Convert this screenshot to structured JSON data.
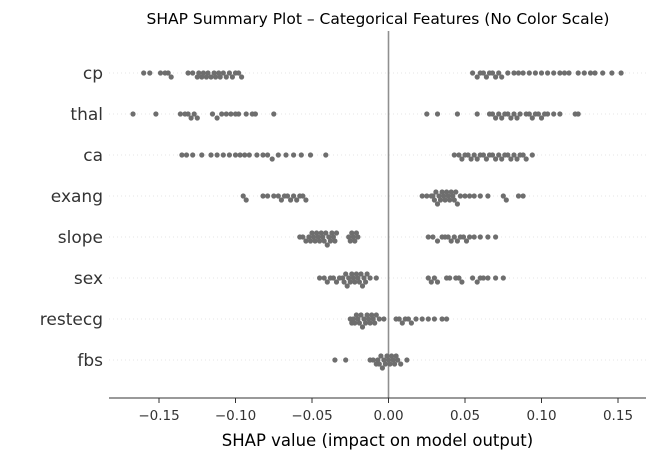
{
  "chart_data": {
    "type": "scatter",
    "title": "SHAP Summary Plot – Categorical Features (No Color Scale)",
    "xlabel": "SHAP value (impact on model output)",
    "ylabel": "",
    "xlim": [
      -0.185,
      0.17
    ],
    "xticks": [
      -0.15,
      -0.1,
      -0.05,
      0.0,
      0.05,
      0.1,
      0.15
    ],
    "xtick_labels": [
      "−0.15",
      "−0.10",
      "−0.05",
      "0.00",
      "0.05",
      "0.10",
      "0.15"
    ],
    "zero_line": 0.0,
    "grid": false,
    "point_color": "#6e6e6e",
    "zero_line_color": "#8f8f8f",
    "row_line_color": "#e6e6e6",
    "features": [
      {
        "name": "cp",
        "values": [
          -0.16,
          -0.156,
          -0.149,
          -0.146,
          -0.144,
          -0.142,
          -0.131,
          -0.128,
          -0.125,
          -0.124,
          -0.122,
          -0.121,
          -0.119,
          -0.118,
          -0.116,
          -0.114,
          -0.113,
          -0.111,
          -0.11,
          -0.108,
          -0.106,
          -0.104,
          -0.102,
          -0.1,
          -0.098,
          -0.096,
          0.055,
          0.058,
          0.06,
          0.062,
          0.064,
          0.066,
          0.068,
          0.07,
          0.072,
          0.074,
          0.078,
          0.082,
          0.085,
          0.088,
          0.092,
          0.096,
          0.1,
          0.104,
          0.108,
          0.112,
          0.115,
          0.118,
          0.124,
          0.128,
          0.132,
          0.135,
          0.14,
          0.146,
          0.152
        ]
      },
      {
        "name": "thal",
        "values": [
          -0.167,
          -0.152,
          -0.136,
          -0.133,
          -0.131,
          -0.129,
          -0.127,
          -0.125,
          -0.115,
          -0.112,
          -0.109,
          -0.106,
          -0.103,
          -0.1,
          -0.098,
          -0.093,
          -0.089,
          -0.087,
          -0.075,
          0.025,
          0.032,
          0.045,
          0.058,
          0.066,
          0.068,
          0.07,
          0.072,
          0.074,
          0.076,
          0.078,
          0.08,
          0.082,
          0.084,
          0.086,
          0.09,
          0.092,
          0.094,
          0.096,
          0.098,
          0.1,
          0.102,
          0.104,
          0.108,
          0.112,
          0.122,
          0.124
        ]
      },
      {
        "name": "ca",
        "values": [
          -0.135,
          -0.132,
          -0.128,
          -0.122,
          -0.116,
          -0.112,
          -0.108,
          -0.104,
          -0.1,
          -0.097,
          -0.094,
          -0.091,
          -0.086,
          -0.082,
          -0.079,
          -0.076,
          -0.072,
          -0.067,
          -0.062,
          -0.057,
          -0.051,
          -0.041,
          0.043,
          0.046,
          0.048,
          0.05,
          0.052,
          0.054,
          0.056,
          0.058,
          0.06,
          0.062,
          0.064,
          0.066,
          0.068,
          0.07,
          0.072,
          0.074,
          0.076,
          0.078,
          0.08,
          0.082,
          0.084,
          0.086,
          0.088,
          0.09,
          0.094
        ]
      },
      {
        "name": "exang",
        "values": [
          -0.095,
          -0.093,
          -0.082,
          -0.079,
          -0.075,
          -0.072,
          -0.07,
          -0.068,
          -0.066,
          -0.064,
          -0.062,
          -0.06,
          -0.058,
          -0.056,
          -0.054,
          0.022,
          0.025,
          0.028,
          0.029,
          0.03,
          0.031,
          0.032,
          0.033,
          0.034,
          0.035,
          0.036,
          0.037,
          0.038,
          0.039,
          0.04,
          0.041,
          0.042,
          0.043,
          0.044,
          0.045,
          0.047,
          0.05,
          0.053,
          0.056,
          0.06,
          0.065,
          0.075,
          0.077,
          0.085,
          0.088
        ]
      },
      {
        "name": "slope",
        "values": [
          -0.058,
          -0.056,
          -0.054,
          -0.052,
          -0.051,
          -0.05,
          -0.049,
          -0.048,
          -0.047,
          -0.046,
          -0.045,
          -0.044,
          -0.043,
          -0.042,
          -0.041,
          -0.04,
          -0.039,
          -0.038,
          -0.037,
          -0.036,
          -0.035,
          -0.034,
          -0.026,
          -0.025,
          -0.024,
          -0.023,
          -0.022,
          -0.021,
          -0.02,
          0.026,
          0.029,
          0.032,
          0.035,
          0.037,
          0.039,
          0.041,
          0.043,
          0.045,
          0.047,
          0.049,
          0.051,
          0.053,
          0.056,
          0.06,
          0.065,
          0.07
        ]
      },
      {
        "name": "sex",
        "values": [
          -0.045,
          -0.042,
          -0.04,
          -0.038,
          -0.036,
          -0.034,
          -0.032,
          -0.03,
          -0.029,
          -0.028,
          -0.027,
          -0.026,
          -0.025,
          -0.024,
          -0.023,
          -0.022,
          -0.021,
          -0.02,
          -0.019,
          -0.018,
          -0.017,
          -0.016,
          -0.015,
          -0.014,
          -0.012,
          -0.008,
          0.026,
          0.028,
          0.03,
          0.032,
          0.038,
          0.04,
          0.044,
          0.046,
          0.048,
          0.055,
          0.058,
          0.06,
          0.062,
          0.065,
          0.07,
          0.075
        ]
      },
      {
        "name": "restecg",
        "values": [
          -0.025,
          -0.024,
          -0.023,
          -0.022,
          -0.021,
          -0.02,
          -0.019,
          -0.018,
          -0.017,
          -0.016,
          -0.015,
          -0.014,
          -0.013,
          -0.012,
          -0.011,
          -0.01,
          -0.009,
          -0.008,
          -0.006,
          -0.003,
          0.005,
          0.007,
          0.009,
          0.011,
          0.013,
          0.015,
          0.018,
          0.022,
          0.026,
          0.03,
          0.035,
          0.038
        ]
      },
      {
        "name": "fbs",
        "values": [
          -0.035,
          -0.028,
          -0.012,
          -0.01,
          -0.008,
          -0.007,
          -0.006,
          -0.005,
          -0.004,
          -0.003,
          -0.002,
          -0.001,
          0.0,
          0.001,
          0.002,
          0.003,
          0.004,
          0.005,
          0.006,
          0.008,
          0.012
        ]
      }
    ]
  }
}
